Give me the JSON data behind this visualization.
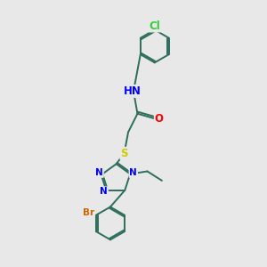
{
  "background_color": "#e8e8e8",
  "bond_color": "#2d6e5c",
  "N_color": "#0000ff",
  "O_color": "#ff0000",
  "S_color": "#cccc00",
  "Cl_color": "#33cc33",
  "Br_color": "#cc6600",
  "figsize": [
    3.0,
    3.0
  ],
  "dpi": 100,
  "xlim": [
    0,
    10
  ],
  "ylim": [
    0,
    10
  ]
}
